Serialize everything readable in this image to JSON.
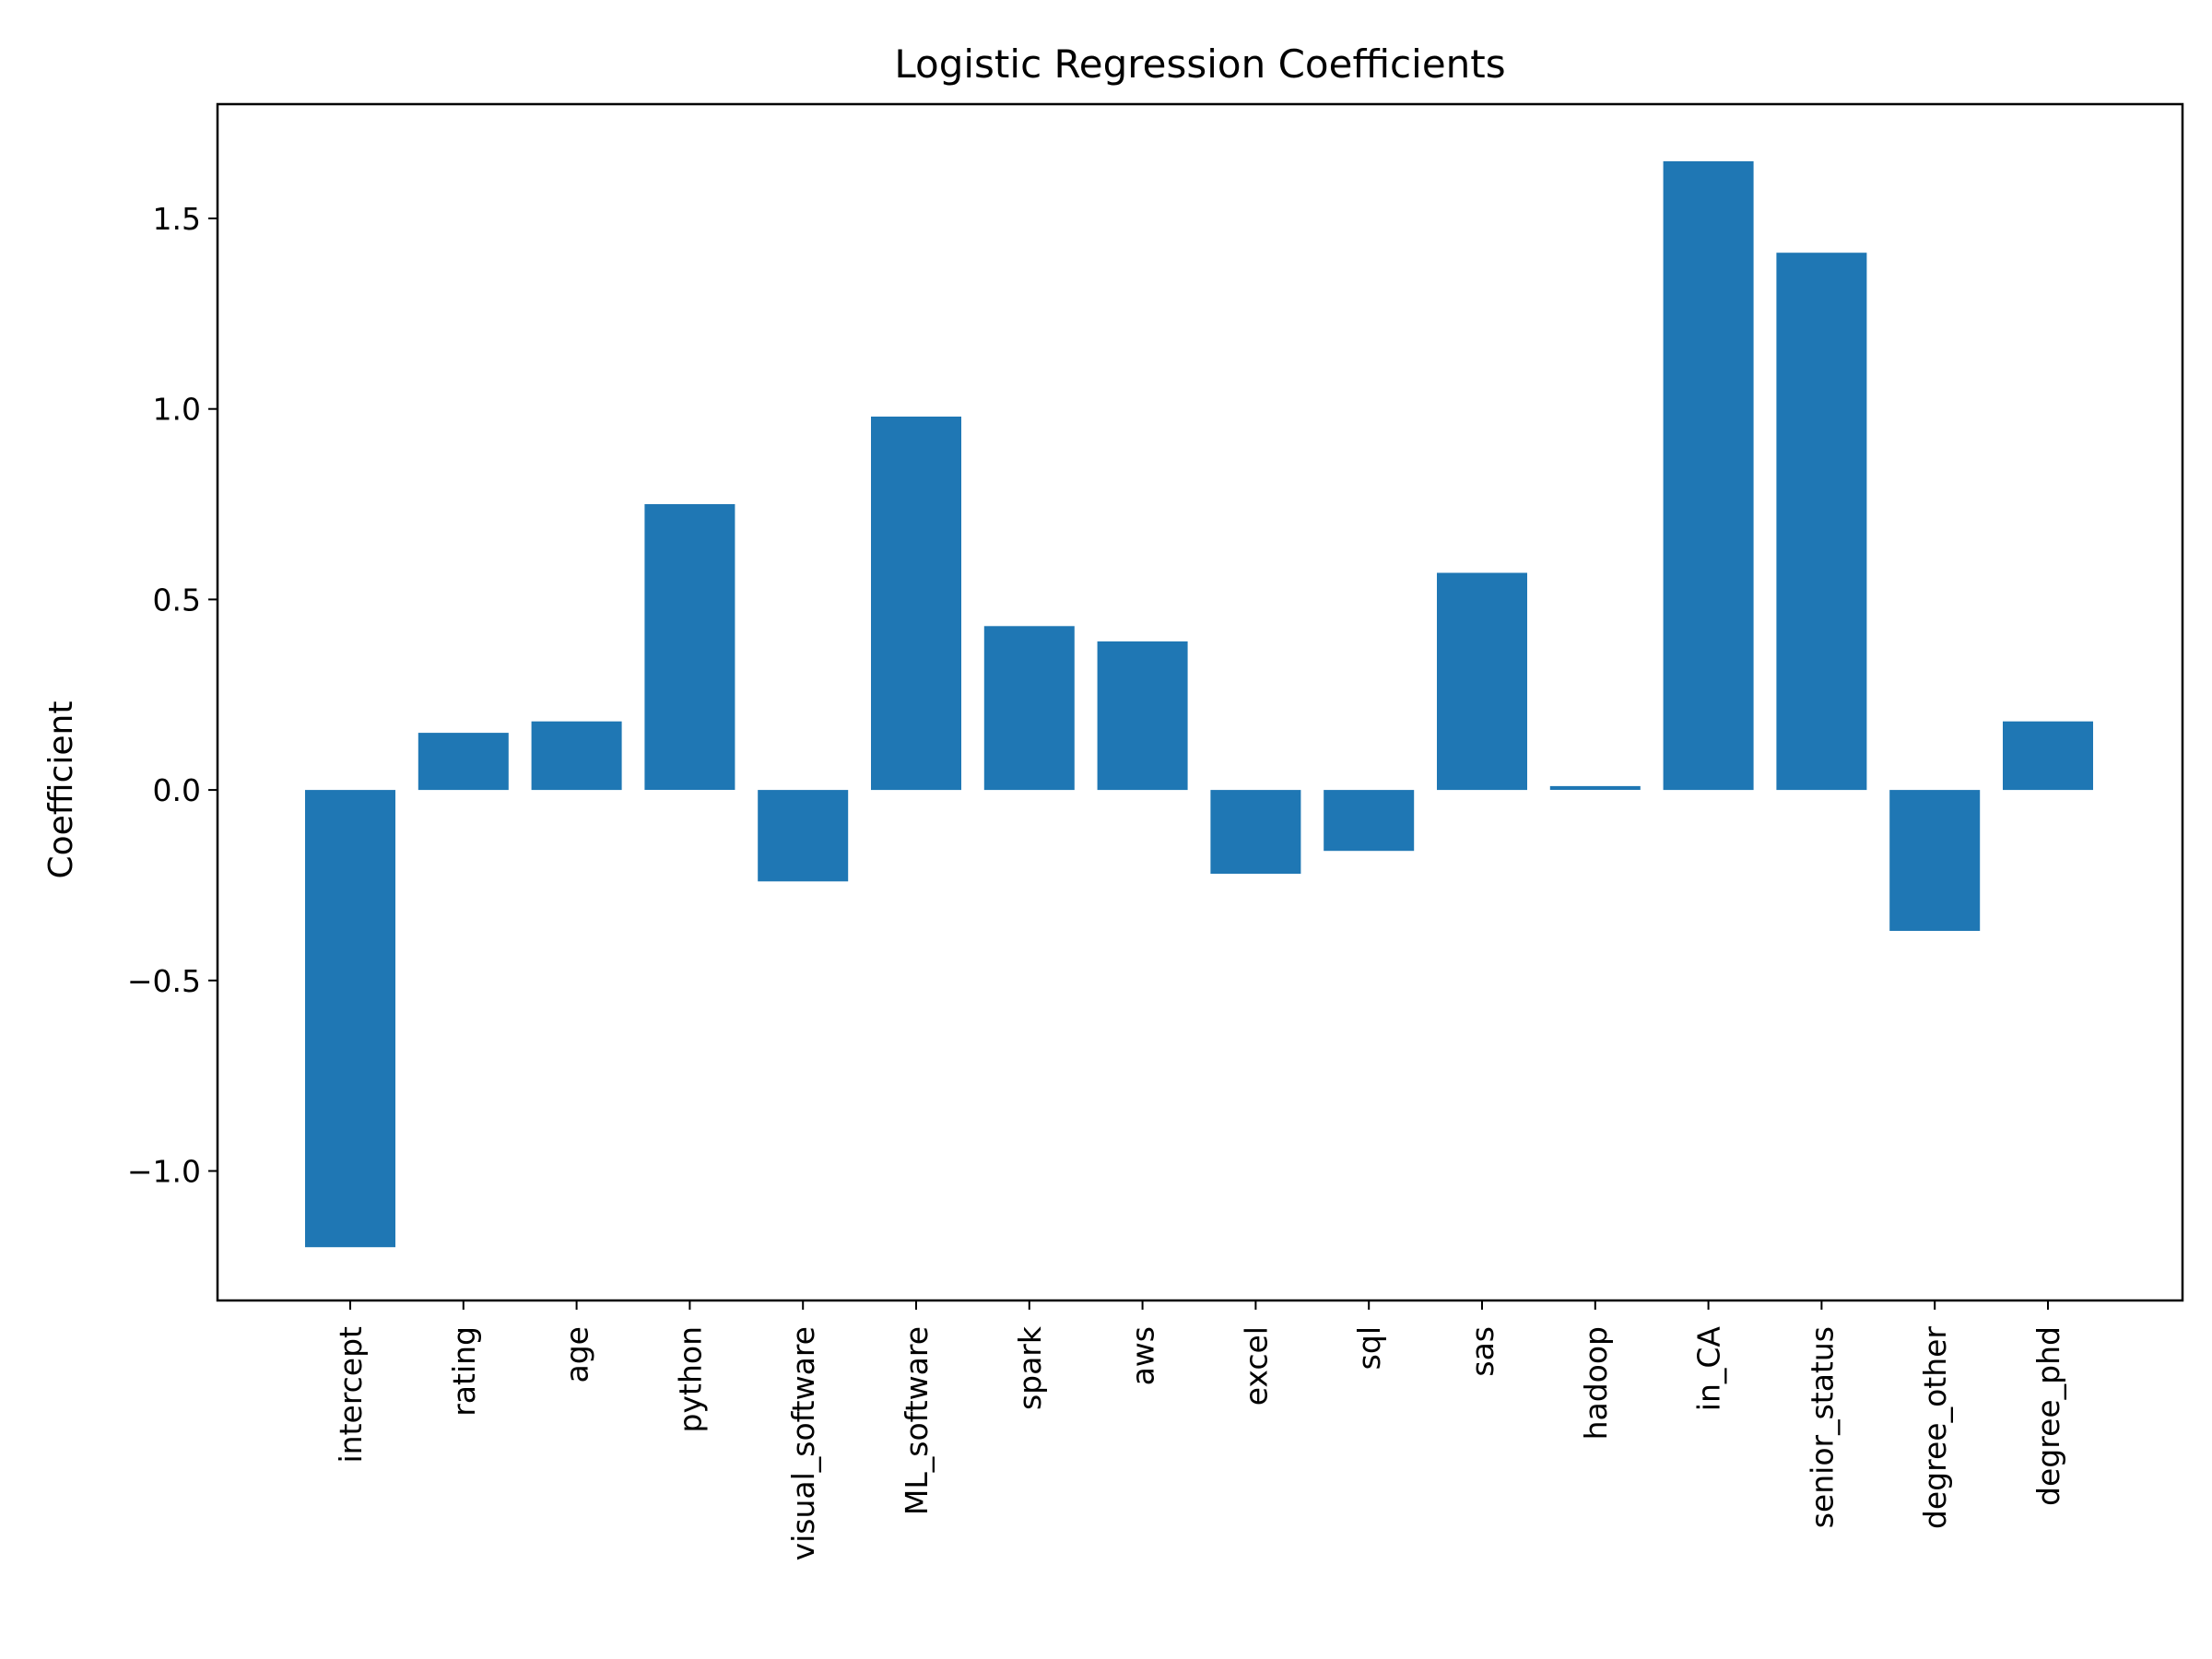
{
  "chart_data": {
    "type": "bar",
    "title": "Logistic Regression Coefficients",
    "xlabel": "",
    "ylabel": "Coefficient",
    "categories": [
      "intercept",
      "rating",
      "age",
      "python",
      "visual_software",
      "ML_software",
      "spark",
      "aws",
      "excel",
      "sql",
      "sas",
      "hadoop",
      "in_CA",
      "senior_status",
      "degree_other",
      "degree_phd"
    ],
    "values": [
      -1.2,
      0.15,
      0.18,
      0.75,
      -0.24,
      0.98,
      0.43,
      0.39,
      -0.22,
      -0.16,
      0.57,
      0.01,
      1.65,
      1.41,
      -0.37,
      0.18
    ],
    "ylim": [
      -1.34,
      1.8
    ],
    "yticks": [
      -1.0,
      -0.5,
      0.0,
      0.5,
      1.0,
      1.5
    ],
    "ytick_labels": [
      "−1.0",
      "−0.5",
      "0.0",
      "0.5",
      "1.0",
      "1.5"
    ],
    "bar_color": "#1f77b4",
    "grid": false,
    "legend": "none"
  }
}
